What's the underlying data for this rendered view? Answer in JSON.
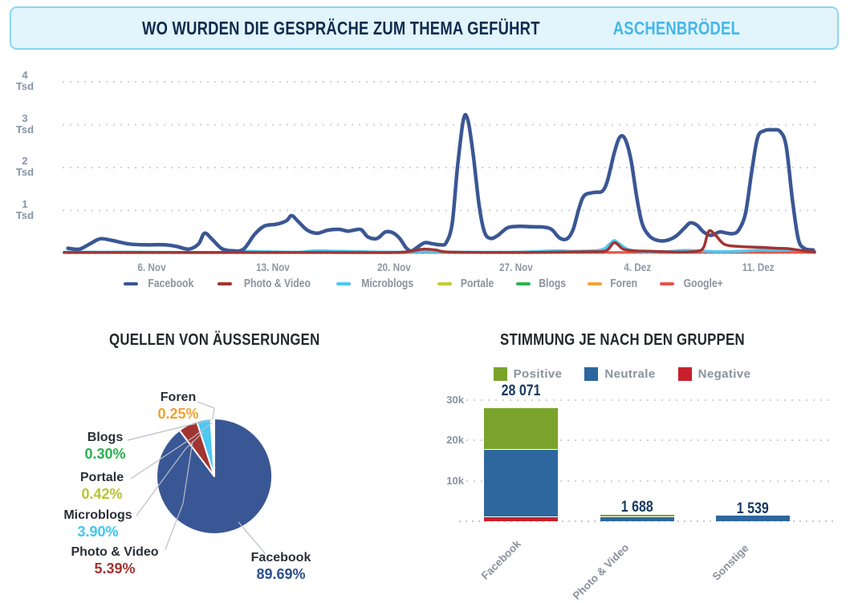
{
  "banner": {
    "title": "WO WURDEN DIE GESPRÄCHE ZUM THEMA GEFÜHRT",
    "highlight": "ASCHENBRÖDEL",
    "background": "#e2f4fc",
    "border_color": "#8bd6f2",
    "title_color": "#0f2b4e",
    "highlight_color": "#45b7e9"
  },
  "chart_data": [
    {
      "id": "timeline",
      "type": "line",
      "unit": "Tsd",
      "ylim": [
        0,
        4.3
      ],
      "grid": true,
      "yticks": [
        {
          "num": "4",
          "unit": "Tsd",
          "value": 4
        },
        {
          "num": "3",
          "unit": "Tsd",
          "value": 3
        },
        {
          "num": "2",
          "unit": "Tsd",
          "value": 2
        },
        {
          "num": "1",
          "unit": "Tsd",
          "value": 1
        }
      ],
      "xticks": [
        {
          "label": "6. Nov",
          "f": 0.117
        },
        {
          "label": "13. Nov",
          "f": 0.278
        },
        {
          "label": "20. Nov",
          "f": 0.44
        },
        {
          "label": "27. Nov",
          "f": 0.602
        },
        {
          "label": "4. Dez",
          "f": 0.764
        },
        {
          "label": "11. Dez",
          "f": 0.925
        }
      ],
      "legend": [
        {
          "label": "Facebook",
          "color": "#3a5795"
        },
        {
          "label": "Photo & Video",
          "color": "#a23431"
        },
        {
          "label": "Microblogs",
          "color": "#4cc8f2"
        },
        {
          "label": "Portale",
          "color": "#c3ca37"
        },
        {
          "label": "Blogs",
          "color": "#2eb353"
        },
        {
          "label": "Foren",
          "color": "#f2a33c"
        },
        {
          "label": "Google+",
          "color": "#e2574c"
        }
      ],
      "series": [
        {
          "name": "Blogs",
          "color": "#2eb353",
          "width": 2.5,
          "points": [
            [
              0,
              0.005
            ],
            [
              0.5,
              0.005
            ],
            [
              1,
              0.005
            ]
          ]
        },
        {
          "name": "Portale",
          "color": "#c3ca37",
          "width": 2.5,
          "points": [
            [
              0,
              0.008
            ],
            [
              0.5,
              0.008
            ],
            [
              1,
              0.008
            ]
          ]
        },
        {
          "name": "Foren",
          "color": "#f2a33c",
          "width": 2.5,
          "points": [
            [
              0,
              0.012
            ],
            [
              0.5,
              0.012
            ],
            [
              1,
              0.012
            ]
          ]
        },
        {
          "name": "Google+",
          "color": "#e2574c",
          "width": 3,
          "points": [
            [
              0,
              0.022
            ],
            [
              0.5,
              0.022
            ],
            [
              1,
              0.022
            ]
          ]
        },
        {
          "name": "Microblogs",
          "color": "#4cc8f2",
          "width": 3.5,
          "points": [
            [
              0,
              0.03
            ],
            [
              0.1,
              0.03
            ],
            [
              0.2,
              0.02
            ],
            [
              0.235,
              0.05
            ],
            [
              0.27,
              0.04
            ],
            [
              0.31,
              0.03
            ],
            [
              0.335,
              0.06
            ],
            [
              0.37,
              0.05
            ],
            [
              0.43,
              0.03
            ],
            [
              0.48,
              0.04
            ],
            [
              0.53,
              0.03
            ],
            [
              0.6,
              0.03
            ],
            [
              0.655,
              0.06
            ],
            [
              0.68,
              0.05
            ],
            [
              0.715,
              0.08
            ],
            [
              0.727,
              0.22
            ],
            [
              0.733,
              0.3
            ],
            [
              0.74,
              0.22
            ],
            [
              0.752,
              0.09
            ],
            [
              0.77,
              0.04
            ],
            [
              0.8,
              0.04
            ],
            [
              0.825,
              0.07
            ],
            [
              0.848,
              0.06
            ],
            [
              0.87,
              0.04
            ],
            [
              0.9,
              0.05
            ],
            [
              0.928,
              0.08
            ],
            [
              0.952,
              0.09
            ],
            [
              0.972,
              0.08
            ],
            [
              1,
              0.05
            ]
          ]
        },
        {
          "name": "Facebook",
          "color": "#3a5795",
          "width": 4.5,
          "points": [
            [
              0.005,
              0.12
            ],
            [
              0.02,
              0.1
            ],
            [
              0.034,
              0.22
            ],
            [
              0.048,
              0.34
            ],
            [
              0.064,
              0.3
            ],
            [
              0.086,
              0.22
            ],
            [
              0.107,
              0.2
            ],
            [
              0.134,
              0.2
            ],
            [
              0.15,
              0.16
            ],
            [
              0.166,
              0.1
            ],
            [
              0.179,
              0.22
            ],
            [
              0.187,
              0.47
            ],
            [
              0.197,
              0.33
            ],
            [
              0.21,
              0.11
            ],
            [
              0.225,
              0.06
            ],
            [
              0.239,
              0.1
            ],
            [
              0.254,
              0.45
            ],
            [
              0.267,
              0.64
            ],
            [
              0.283,
              0.68
            ],
            [
              0.296,
              0.76
            ],
            [
              0.303,
              0.88
            ],
            [
              0.312,
              0.74
            ],
            [
              0.324,
              0.54
            ],
            [
              0.337,
              0.47
            ],
            [
              0.351,
              0.54
            ],
            [
              0.366,
              0.56
            ],
            [
              0.378,
              0.52
            ],
            [
              0.388,
              0.55
            ],
            [
              0.396,
              0.55
            ],
            [
              0.405,
              0.38
            ],
            [
              0.417,
              0.35
            ],
            [
              0.428,
              0.5
            ],
            [
              0.438,
              0.48
            ],
            [
              0.447,
              0.35
            ],
            [
              0.456,
              0.12
            ],
            [
              0.463,
              0.06
            ],
            [
              0.472,
              0.16
            ],
            [
              0.481,
              0.25
            ],
            [
              0.492,
              0.22
            ],
            [
              0.502,
              0.2
            ],
            [
              0.509,
              0.25
            ],
            [
              0.517,
              0.7
            ],
            [
              0.524,
              2.0
            ],
            [
              0.532,
              3.12
            ],
            [
              0.538,
              3.1
            ],
            [
              0.545,
              2.3
            ],
            [
              0.553,
              1.1
            ],
            [
              0.56,
              0.5
            ],
            [
              0.568,
              0.35
            ],
            [
              0.578,
              0.42
            ],
            [
              0.591,
              0.6
            ],
            [
              0.607,
              0.63
            ],
            [
              0.623,
              0.62
            ],
            [
              0.64,
              0.61
            ],
            [
              0.65,
              0.55
            ],
            [
              0.66,
              0.36
            ],
            [
              0.67,
              0.34
            ],
            [
              0.678,
              0.55
            ],
            [
              0.686,
              1.05
            ],
            [
              0.693,
              1.35
            ],
            [
              0.706,
              1.42
            ],
            [
              0.717,
              1.45
            ],
            [
              0.724,
              1.7
            ],
            [
              0.733,
              2.35
            ],
            [
              0.74,
              2.7
            ],
            [
              0.747,
              2.68
            ],
            [
              0.755,
              2.2
            ],
            [
              0.763,
              1.3
            ],
            [
              0.77,
              0.7
            ],
            [
              0.779,
              0.42
            ],
            [
              0.789,
              0.31
            ],
            [
              0.802,
              0.3
            ],
            [
              0.815,
              0.4
            ],
            [
              0.827,
              0.6
            ],
            [
              0.834,
              0.71
            ],
            [
              0.843,
              0.66
            ],
            [
              0.852,
              0.5
            ],
            [
              0.862,
              0.42
            ],
            [
              0.873,
              0.5
            ],
            [
              0.881,
              0.48
            ],
            [
              0.891,
              0.46
            ],
            [
              0.899,
              0.55
            ],
            [
              0.908,
              0.95
            ],
            [
              0.916,
              1.9
            ],
            [
              0.924,
              2.7
            ],
            [
              0.933,
              2.86
            ],
            [
              0.944,
              2.88
            ],
            [
              0.954,
              2.84
            ],
            [
              0.962,
              2.5
            ],
            [
              0.97,
              1.3
            ],
            [
              0.978,
              0.35
            ],
            [
              0.986,
              0.12
            ],
            [
              0.998,
              0.08
            ]
          ]
        },
        {
          "name": "Photo & Video",
          "color": "#a23431",
          "width": 3.5,
          "points": [
            [
              0,
              0.02
            ],
            [
              0.2,
              0.02
            ],
            [
              0.35,
              0.02
            ],
            [
              0.44,
              0.02
            ],
            [
              0.462,
              0.05
            ],
            [
              0.478,
              0.1
            ],
            [
              0.495,
              0.08
            ],
            [
              0.515,
              0.03
            ],
            [
              0.6,
              0.02
            ],
            [
              0.66,
              0.03
            ],
            [
              0.7,
              0.04
            ],
            [
              0.722,
              0.06
            ],
            [
              0.733,
              0.25
            ],
            [
              0.745,
              0.1
            ],
            [
              0.76,
              0.06
            ],
            [
              0.78,
              0.05
            ],
            [
              0.8,
              0.04
            ],
            [
              0.82,
              0.03
            ],
            [
              0.843,
              0.05
            ],
            [
              0.852,
              0.14
            ],
            [
              0.859,
              0.52
            ],
            [
              0.868,
              0.42
            ],
            [
              0.88,
              0.21
            ],
            [
              0.9,
              0.16
            ],
            [
              0.93,
              0.14
            ],
            [
              0.95,
              0.12
            ],
            [
              0.965,
              0.11
            ],
            [
              0.985,
              0.06
            ],
            [
              1,
              0.03
            ]
          ]
        }
      ]
    },
    {
      "id": "sources",
      "type": "pie",
      "title": "QUELLEN VON ÄUSSERUNGEN",
      "slices": [
        {
          "label": "Facebook",
          "pct": 89.69,
          "pct_label": "89.69%",
          "color": "#3a5795",
          "pct_color": "#2d4f8e"
        },
        {
          "label": "Photo & Video",
          "pct": 5.39,
          "pct_label": "5.39%",
          "color": "#a23431",
          "pct_color": "#a23431"
        },
        {
          "label": "Microblogs",
          "pct": 3.9,
          "pct_label": "3.90%",
          "color": "#4cc8f2",
          "pct_color": "#3fc6f3"
        },
        {
          "label": "Portale",
          "pct": 0.42,
          "pct_label": "0.42%",
          "color": "#c3ca37",
          "pct_color": "#b9c430"
        },
        {
          "label": "Blogs",
          "pct": 0.3,
          "pct_label": "0.30%",
          "color": "#2eb353",
          "pct_color": "#27b14e"
        },
        {
          "label": "Foren",
          "pct": 0.25,
          "pct_label": "0.25%",
          "color": "#f2a33c",
          "pct_color": "#f0a132"
        }
      ]
    },
    {
      "id": "sentiment",
      "type": "stacked-bar",
      "title": "STIMMUNG JE NACH DEN GRUPPEN",
      "legend": [
        {
          "label": "Positive",
          "color": "#7aa32c"
        },
        {
          "label": "Neutrale",
          "color": "#2d679e"
        },
        {
          "label": "Negative",
          "color": "#c9202b"
        }
      ],
      "categories": [
        "Facebook",
        "Photo & Video",
        "Sonstige"
      ],
      "totals": [
        "28 071",
        "1 688",
        "1 539"
      ],
      "series": [
        {
          "name": "Positive",
          "color": "#7aa32c",
          "values": [
            10171,
            420,
            0
          ]
        },
        {
          "name": "Neutrale",
          "color": "#2d679e",
          "values": [
            16800,
            1268,
            1539
          ]
        },
        {
          "name": "Negative",
          "color": "#c9202b",
          "values": [
            1100,
            0,
            0
          ]
        }
      ],
      "yticks": [
        {
          "label": "30k",
          "value": 30000
        },
        {
          "label": "20k",
          "value": 20000
        },
        {
          "label": "10k",
          "value": 10000
        }
      ],
      "ylim": [
        0,
        32000
      ]
    }
  ]
}
